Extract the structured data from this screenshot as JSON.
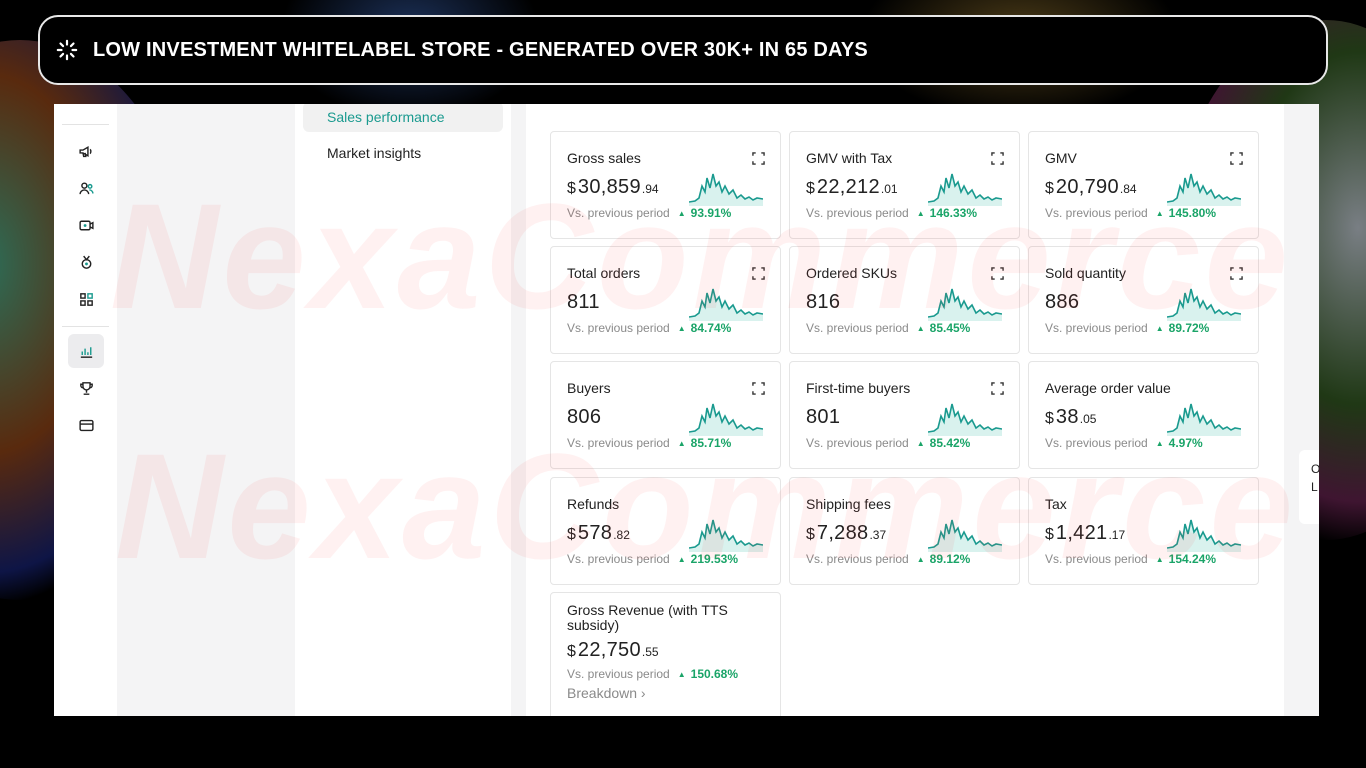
{
  "banner": {
    "title": "LOW INVESTMENT WHITELABEL STORE - GENERATED OVER 30K+ IN 65 DAYS",
    "icon": "loading-spinner-icon"
  },
  "watermark": "NexaCommerce",
  "rail": {
    "icons": [
      "megaphone-icon",
      "users-icon",
      "video-icon",
      "medal-icon",
      "apps-icon",
      "analytics-icon",
      "trophy-icon",
      "card-icon"
    ],
    "active_icon": "analytics-icon"
  },
  "sidenav": {
    "items": [
      {
        "label": "Sales performance",
        "active": true
      },
      {
        "label": "Market insights",
        "active": false
      }
    ]
  },
  "side_card_text": [
    "O",
    "L"
  ],
  "compare_label": "Vs. previous period",
  "colors": {
    "accent": "#1a9a8f",
    "positive": "#1aa468",
    "spark_fill": "#d9f2ee"
  },
  "metrics": [
    {
      "title": "Gross sales",
      "currency": "$",
      "main": "30,859",
      "decimal": ".94",
      "change": "93.91%",
      "expand": true
    },
    {
      "title": "GMV with Tax",
      "currency": "$",
      "main": "22,212",
      "decimal": ".01",
      "change": "146.33%",
      "expand": true
    },
    {
      "title": "GMV",
      "currency": "$",
      "main": "20,790",
      "decimal": ".84",
      "change": "145.80%",
      "expand": true
    },
    {
      "title": "Total orders",
      "currency": "",
      "main": "811",
      "decimal": "",
      "change": "84.74%",
      "expand": true
    },
    {
      "title": "Ordered SKUs",
      "currency": "",
      "main": "816",
      "decimal": "",
      "change": "85.45%",
      "expand": true
    },
    {
      "title": "Sold quantity",
      "currency": "",
      "main": "886",
      "decimal": "",
      "change": "89.72%",
      "expand": true
    },
    {
      "title": "Buyers",
      "currency": "",
      "main": "806",
      "decimal": "",
      "change": "85.71%",
      "expand": true
    },
    {
      "title": "First-time buyers",
      "currency": "",
      "main": "801",
      "decimal": "",
      "change": "85.42%",
      "expand": true
    },
    {
      "title": "Average order value",
      "currency": "$",
      "main": "38",
      "decimal": ".05",
      "change": "4.97%",
      "expand": false
    },
    {
      "title": "Refunds",
      "currency": "$",
      "main": "578",
      "decimal": ".82",
      "change": "219.53%",
      "expand": false
    },
    {
      "title": "Shipping fees",
      "currency": "$",
      "main": "7,288",
      "decimal": ".37",
      "change": "89.12%",
      "expand": false
    },
    {
      "title": "Tax",
      "currency": "$",
      "main": "1,421",
      "decimal": ".17",
      "change": "154.24%",
      "expand": false
    },
    {
      "title": "Gross Revenue (with TTS subsidy)",
      "currency": "$",
      "main": "22,750",
      "decimal": ".55",
      "change": "150.68%",
      "expand": false,
      "link": "Breakdown ›"
    }
  ]
}
